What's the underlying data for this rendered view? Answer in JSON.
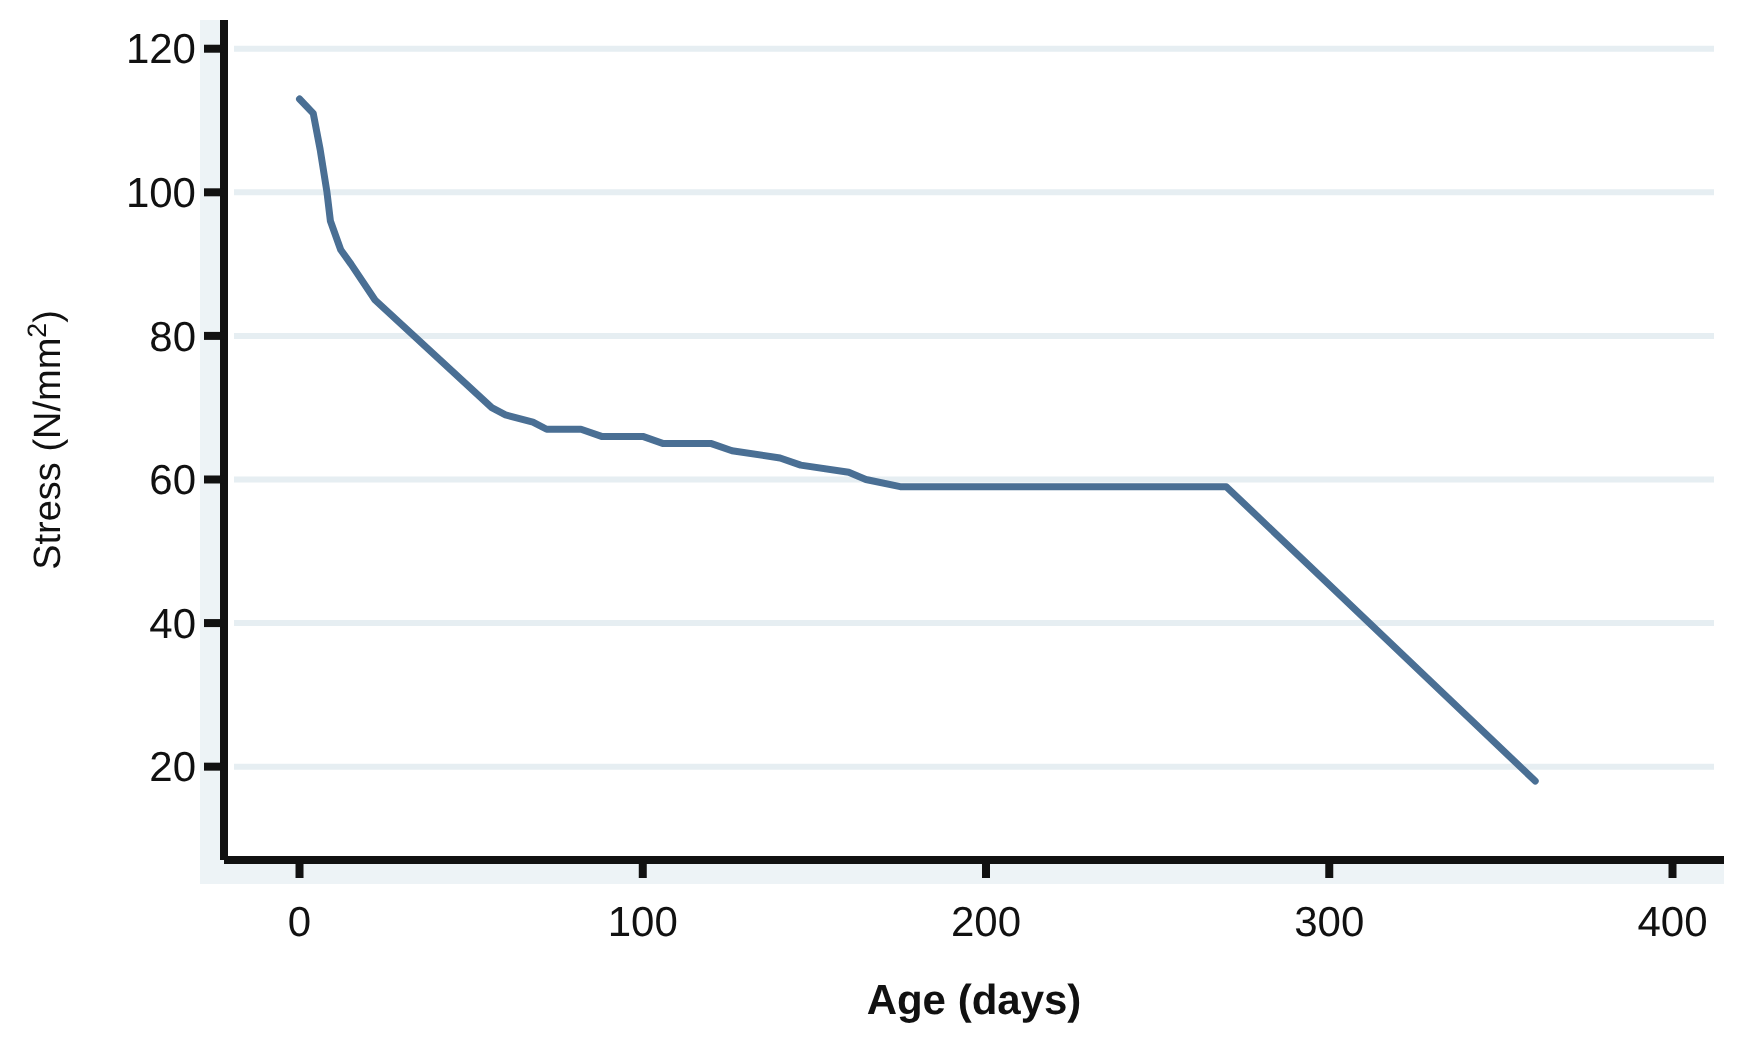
{
  "chart_data": {
    "type": "line",
    "xlabel": "Age (days)",
    "ylabel": "Stress (N/mm$^{2}$)",
    "x": [
      0,
      4,
      6,
      8,
      9,
      12,
      15,
      22,
      56,
      60,
      68,
      72,
      82,
      88,
      100,
      106,
      120,
      126,
      140,
      146,
      160,
      165,
      175,
      270,
      360
    ],
    "series": [
      {
        "color": "#4a6f94",
        "values": [
          113,
          111,
          106,
          100,
          96,
          92,
          90,
          85,
          70,
          69,
          68,
          67,
          67,
          66,
          66,
          65,
          65,
          64,
          63,
          62,
          61,
          60,
          59,
          59,
          18
        ]
      }
    ],
    "xlim": [
      -22,
      415
    ],
    "ylim": [
      7,
      124
    ],
    "xticks": [
      0,
      100,
      200,
      300,
      400
    ],
    "yticks": [
      20,
      40,
      60,
      80,
      100,
      120
    ],
    "grid": "y",
    "marker": "none",
    "line_style": "solid"
  }
}
